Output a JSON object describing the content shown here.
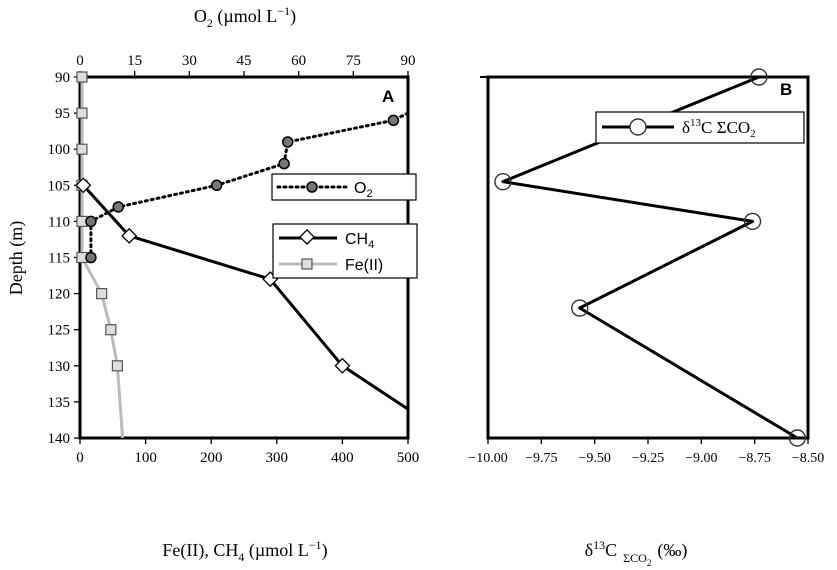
{
  "chart_data": [
    {
      "panel_label": "A",
      "type": "line",
      "ylabel": "Depth (m)",
      "y_ticks": [
        90,
        95,
        100,
        105,
        110,
        115,
        120,
        125,
        130,
        135,
        140
      ],
      "ylim": [
        90,
        140
      ],
      "y_inverted": true,
      "x_bottom": {
        "label_main": "Fe(II), CH",
        "label_sub": "4",
        "label_unit": " (µmol L",
        "label_sup": "−1",
        "label_close": ")",
        "ticks": [
          0,
          100,
          200,
          300,
          400,
          500
        ],
        "lim": [
          0,
          500
        ]
      },
      "x_top": {
        "label_main": "O",
        "label_sub": "2",
        "label_unit": " (µmol L",
        "label_sup": "−1",
        "label_close": ")",
        "ticks": [
          0,
          15,
          30,
          45,
          60,
          75,
          90
        ],
        "lim": [
          0,
          90
        ]
      },
      "series": [
        {
          "name": "O",
          "name_sub": "2",
          "axis": "top",
          "style": "dotted",
          "marker": "filled-circle",
          "color": "#000000",
          "points": [
            {
              "x": 86,
              "y": 96
            },
            {
              "x": 57,
              "y": 99
            },
            {
              "x": 56,
              "y": 102
            },
            {
              "x": 37.5,
              "y": 105
            },
            {
              "x": 10.5,
              "y": 108
            },
            {
              "x": 3,
              "y": 110
            },
            {
              "x": 3,
              "y": 115
            }
          ],
          "edge_start": {
            "x": 90,
            "y": 95
          }
        },
        {
          "name": "CH",
          "name_sub": "4",
          "axis": "bottom",
          "style": "solid",
          "marker": "open-diamond",
          "color": "#000000",
          "points": [
            {
              "x": 5,
              "y": 105
            },
            {
              "x": 75,
              "y": 112
            },
            {
              "x": 290,
              "y": 118
            },
            {
              "x": 400,
              "y": 130
            }
          ],
          "edge_end": {
            "x": 500,
            "y": 136
          }
        },
        {
          "name": "Fe(II)",
          "axis": "bottom",
          "style": "solid",
          "marker": "open-square",
          "color": "#bbbbbb",
          "points": [
            {
              "x": 3,
              "y": 90
            },
            {
              "x": 3,
              "y": 95
            },
            {
              "x": 3,
              "y": 100
            },
            {
              "x": 3,
              "y": 105
            },
            {
              "x": 3,
              "y": 110
            },
            {
              "x": 3,
              "y": 115
            },
            {
              "x": 33,
              "y": 120
            },
            {
              "x": 47,
              "y": 125
            },
            {
              "x": 57,
              "y": 130
            }
          ],
          "edge_end": {
            "x": 65,
            "y": 140
          }
        }
      ]
    },
    {
      "panel_label": "B",
      "type": "line",
      "xlabel_main": "δ",
      "xlabel_sup": "13",
      "xlabel_c": "C",
      "xlabel_sub": "ΣCO",
      "xlabel_subsub": "2",
      "xlabel_unit": "(‰)",
      "x_ticks": [
        "−10.00",
        "−9.75",
        "−9.50",
        "−9.25",
        "−9.00",
        "−8.75",
        "−8.50"
      ],
      "xlim": [
        -10.0,
        -8.5
      ],
      "ylim": [
        90,
        140
      ],
      "y_inverted": true,
      "series": [
        {
          "name_delta": "δ",
          "name_sup": "13",
          "name_rest": "C ΣCO",
          "name_sub": "2",
          "style": "solid",
          "marker": "open-circle",
          "color": "#000000",
          "points": [
            {
              "x": -8.73,
              "y": 90
            },
            {
              "x": -9.93,
              "y": 104.5
            },
            {
              "x": -8.76,
              "y": 110
            },
            {
              "x": -9.57,
              "y": 122
            },
            {
              "x": -8.55,
              "y": 140
            }
          ]
        }
      ]
    }
  ]
}
